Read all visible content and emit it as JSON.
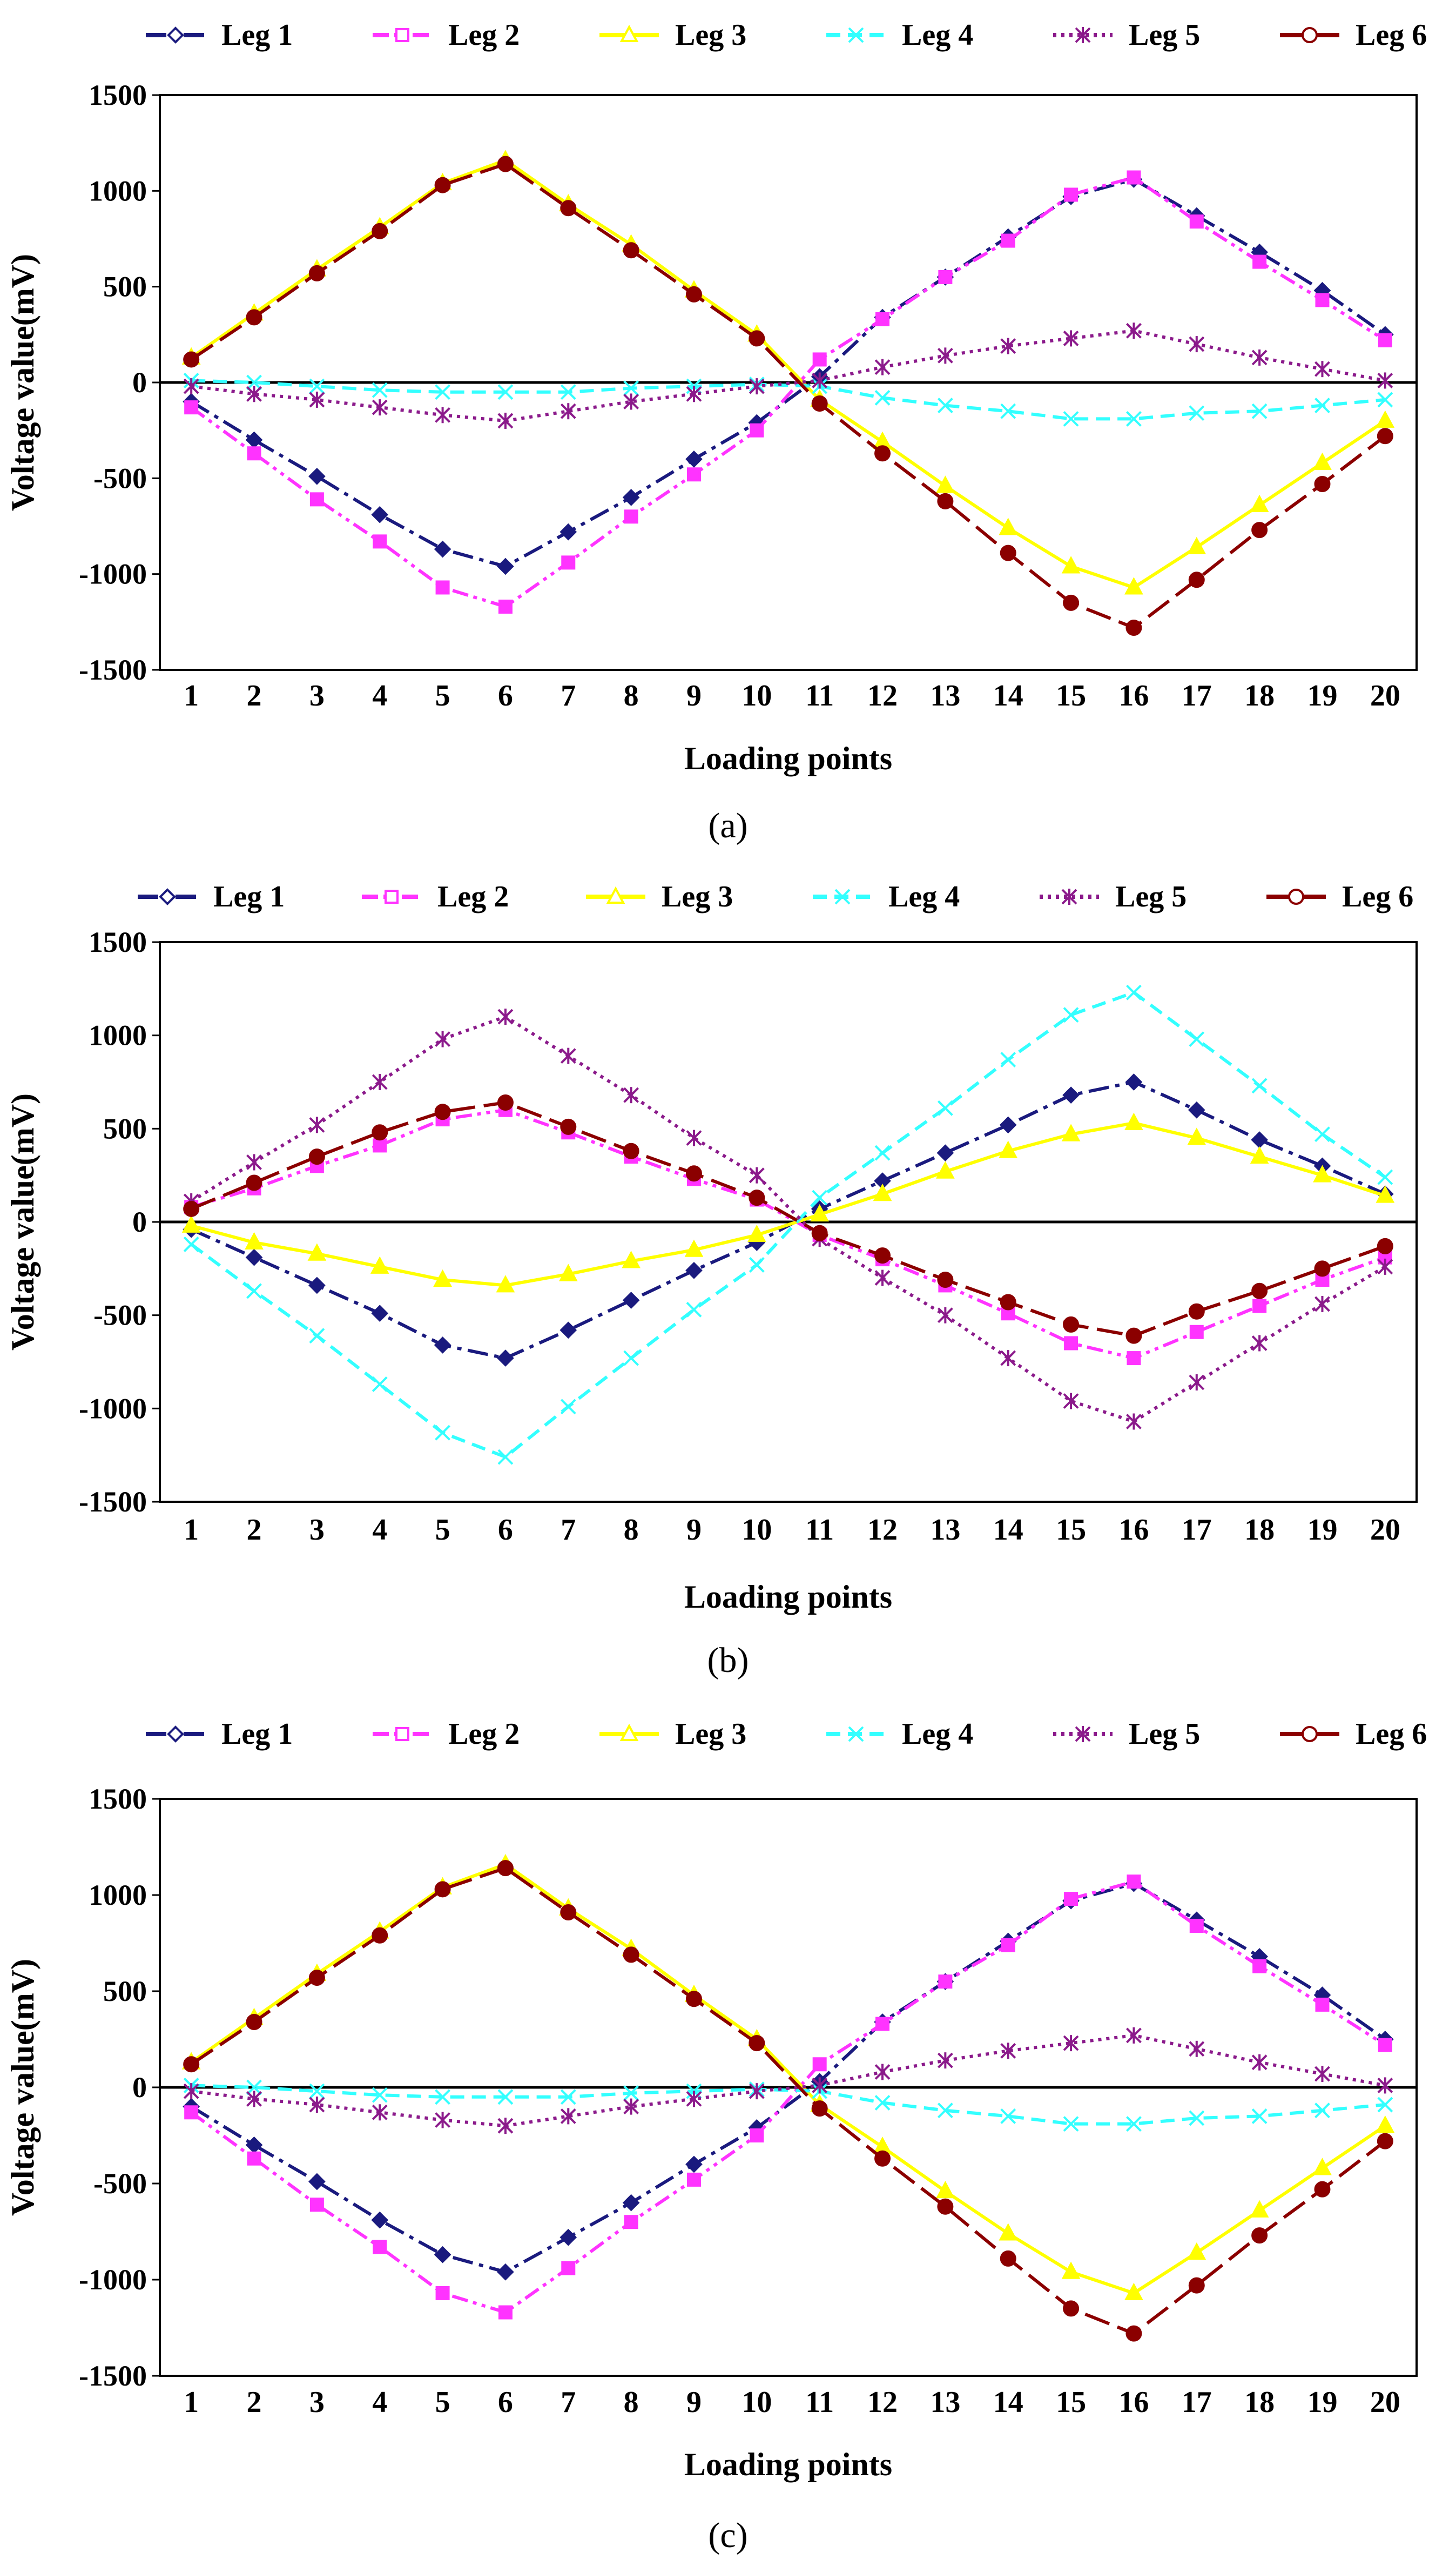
{
  "panels": [
    {
      "label": "(a)",
      "chart_data": {
        "type": "line",
        "title": "",
        "xlabel": "Loading points",
        "ylabel": "Voltage value(mV)",
        "categories": [
          "1",
          "2",
          "3",
          "4",
          "5",
          "6",
          "7",
          "8",
          "9",
          "10",
          "11",
          "12",
          "13",
          "14",
          "15",
          "16",
          "17",
          "18",
          "19",
          "20"
        ],
        "ylim": [
          -1500,
          1500
        ],
        "yticks": [
          1500,
          1000,
          500,
          0,
          -500,
          -1000,
          -1500
        ],
        "grid": false,
        "legend": "top",
        "series": [
          {
            "name": "Leg 1",
            "values": [
              -100,
              -300,
              -490,
              -690,
              -870,
              -960,
              -780,
              -600,
              -400,
              -210,
              30,
              340,
              550,
              760,
              970,
              1060,
              870,
              680,
              480,
              250
            ]
          },
          {
            "name": "Leg 2",
            "values": [
              -130,
              -370,
              -610,
              -830,
              -1070,
              -1170,
              -940,
              -700,
              -480,
              -250,
              120,
              330,
              550,
              740,
              980,
              1070,
              840,
              630,
              430,
              220
            ]
          },
          {
            "name": "Leg 3",
            "values": [
              130,
              360,
              590,
              810,
              1040,
              1160,
              930,
              720,
              480,
              250,
              -90,
              -310,
              -540,
              -760,
              -960,
              -1070,
              -860,
              -640,
              -420,
              -200
            ]
          },
          {
            "name": "Leg 4",
            "values": [
              10,
              0,
              -20,
              -40,
              -50,
              -50,
              -50,
              -30,
              -20,
              -10,
              -20,
              -80,
              -120,
              -150,
              -190,
              -190,
              -160,
              -150,
              -120,
              -90
            ]
          },
          {
            "name": "Leg 5",
            "values": [
              -20,
              -60,
              -90,
              -130,
              -170,
              -200,
              -150,
              -100,
              -60,
              -20,
              10,
              80,
              140,
              190,
              230,
              270,
              200,
              130,
              70,
              10
            ]
          },
          {
            "name": "Leg 6",
            "values": [
              120,
              340,
              570,
              790,
              1030,
              1140,
              910,
              690,
              460,
              230,
              -110,
              -370,
              -620,
              -890,
              -1150,
              -1280,
              -1030,
              -770,
              -530,
              -280
            ]
          }
        ]
      }
    },
    {
      "label": "(b)",
      "chart_data": {
        "type": "line",
        "title": "",
        "xlabel": "Loading points",
        "ylabel": "Voltage value(mV)",
        "categories": [
          "1",
          "2",
          "3",
          "4",
          "5",
          "6",
          "7",
          "8",
          "9",
          "10",
          "11",
          "12",
          "13",
          "14",
          "15",
          "16",
          "17",
          "18",
          "19",
          "20"
        ],
        "ylim": [
          -1500,
          1500
        ],
        "yticks": [
          1500,
          1000,
          500,
          0,
          -500,
          -1000,
          -1500
        ],
        "grid": false,
        "legend": "top",
        "series": [
          {
            "name": "Leg 1",
            "values": [
              -40,
              -190,
              -340,
              -490,
              -660,
              -730,
              -580,
              -420,
              -260,
              -110,
              70,
              220,
              370,
              520,
              680,
              750,
              600,
              440,
              300,
              150
            ]
          },
          {
            "name": "Leg 2",
            "values": [
              80,
              180,
              300,
              410,
              550,
              600,
              480,
              350,
              230,
              120,
              -70,
              -200,
              -340,
              -490,
              -650,
              -730,
              -590,
              -450,
              -310,
              -190
            ]
          },
          {
            "name": "Leg 3",
            "values": [
              -20,
              -110,
              -170,
              -240,
              -310,
              -340,
              -280,
              -210,
              -150,
              -70,
              40,
              150,
              270,
              380,
              470,
              530,
              450,
              350,
              250,
              140
            ]
          },
          {
            "name": "Leg 4",
            "values": [
              -120,
              -370,
              -610,
              -870,
              -1130,
              -1260,
              -990,
              -730,
              -470,
              -230,
              130,
              370,
              610,
              870,
              1110,
              1230,
              980,
              730,
              470,
              240
            ]
          },
          {
            "name": "Leg 5",
            "values": [
              110,
              320,
              520,
              750,
              980,
              1100,
              890,
              680,
              450,
              250,
              -90,
              -300,
              -500,
              -730,
              -960,
              -1070,
              -860,
              -650,
              -440,
              -240
            ]
          },
          {
            "name": "Leg 6",
            "values": [
              70,
              210,
              350,
              480,
              590,
              640,
              510,
              380,
              260,
              130,
              -60,
              -180,
              -310,
              -430,
              -550,
              -610,
              -480,
              -370,
              -250,
              -130
            ]
          }
        ]
      }
    },
    {
      "label": "(c)",
      "chart_data": {
        "type": "line",
        "title": "",
        "xlabel": "Loading points",
        "ylabel": "Voltage value(mV)",
        "categories": [
          "1",
          "2",
          "3",
          "4",
          "5",
          "6",
          "7",
          "8",
          "9",
          "10",
          "11",
          "12",
          "13",
          "14",
          "15",
          "16",
          "17",
          "18",
          "19",
          "20"
        ],
        "ylim": [
          -1500,
          1500
        ],
        "yticks": [
          1500,
          1000,
          500,
          0,
          -500,
          -1000,
          -1500
        ],
        "grid": false,
        "legend": "top",
        "series": [
          {
            "name": "Leg 1",
            "values": [
              -100,
              -300,
              -490,
              -690,
              -870,
              -960,
              -780,
              -600,
              -400,
              -210,
              30,
              340,
              550,
              760,
              970,
              1060,
              870,
              680,
              480,
              250
            ]
          },
          {
            "name": "Leg 2",
            "values": [
              -130,
              -370,
              -610,
              -830,
              -1070,
              -1170,
              -940,
              -700,
              -480,
              -250,
              120,
              330,
              550,
              740,
              980,
              1070,
              840,
              630,
              430,
              220
            ]
          },
          {
            "name": "Leg 3",
            "values": [
              130,
              360,
              590,
              810,
              1040,
              1160,
              930,
              720,
              480,
              250,
              -90,
              -310,
              -540,
              -760,
              -960,
              -1070,
              -860,
              -640,
              -420,
              -200
            ]
          },
          {
            "name": "Leg 4",
            "values": [
              10,
              0,
              -20,
              -40,
              -50,
              -50,
              -50,
              -30,
              -20,
              -10,
              -20,
              -80,
              -120,
              -150,
              -190,
              -190,
              -160,
              -150,
              -120,
              -90
            ]
          },
          {
            "name": "Leg 5",
            "values": [
              -20,
              -60,
              -90,
              -130,
              -170,
              -200,
              -150,
              -100,
              -60,
              -20,
              10,
              80,
              140,
              190,
              230,
              270,
              200,
              130,
              70,
              10
            ]
          },
          {
            "name": "Leg 6",
            "values": [
              120,
              340,
              570,
              790,
              1030,
              1140,
              910,
              690,
              460,
              230,
              -110,
              -370,
              -620,
              -890,
              -1150,
              -1280,
              -1030,
              -770,
              -530,
              -280
            ]
          }
        ]
      }
    }
  ],
  "series_style": [
    {
      "color": "#1a1a7e",
      "marker": "diamond",
      "dash": "dashdot"
    },
    {
      "color": "#ff33ff",
      "marker": "square",
      "dash": "dashdotdot"
    },
    {
      "color": "#ffff00",
      "marker": "triangle",
      "dash": "solid"
    },
    {
      "color": "#33ffff",
      "marker": "x",
      "dash": "dashed"
    },
    {
      "color": "#8b1a8b",
      "marker": "asterisk",
      "dash": "dotted"
    },
    {
      "color": "#8b0000",
      "marker": "circle",
      "dash": "longdash"
    }
  ]
}
